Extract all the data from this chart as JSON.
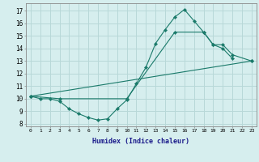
{
  "xlabel": "Humidex (Indice chaleur)",
  "background_color": "#d6eeee",
  "grid_color": "#b8d8d8",
  "line_color": "#1a7a6a",
  "xlim": [
    -0.5,
    23.5
  ],
  "ylim": [
    7.8,
    17.6
  ],
  "xticks": [
    0,
    1,
    2,
    3,
    4,
    5,
    6,
    7,
    8,
    9,
    10,
    11,
    12,
    13,
    14,
    15,
    16,
    17,
    18,
    19,
    20,
    21,
    22,
    23
  ],
  "yticks": [
    8,
    9,
    10,
    11,
    12,
    13,
    14,
    15,
    16,
    17
  ],
  "curve1_x": [
    0,
    1,
    2,
    3,
    4,
    5,
    6,
    7,
    8,
    9,
    10,
    11,
    12,
    13,
    14,
    15,
    16,
    17,
    18,
    19,
    20,
    21
  ],
  "curve1_y": [
    10.2,
    10.0,
    10.0,
    9.8,
    9.2,
    8.8,
    8.5,
    8.3,
    8.4,
    9.2,
    9.9,
    11.2,
    12.5,
    14.4,
    15.5,
    16.5,
    17.1,
    16.2,
    15.3,
    14.3,
    14.0,
    13.2
  ],
  "curve2_x": [
    0,
    3,
    10,
    15,
    18,
    19,
    20,
    21,
    23
  ],
  "curve2_y": [
    10.2,
    10.0,
    10.0,
    15.3,
    15.3,
    14.3,
    14.3,
    13.5,
    13.0
  ],
  "curve3_x": [
    0,
    23
  ],
  "curve3_y": [
    10.2,
    13.0
  ]
}
